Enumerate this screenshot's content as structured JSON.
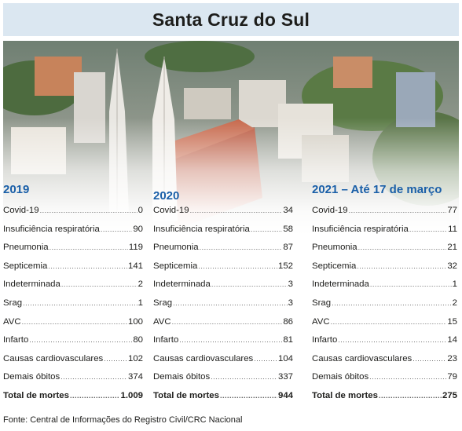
{
  "title": "Santa Cruz do Sul",
  "source": "Fonte: Central de Informações do Registro Civil/CRC Nacional",
  "columns": [
    {
      "heading": "2019",
      "rows": [
        {
          "label": "Covid-19",
          "value": "0"
        },
        {
          "label": "Insuficiência respiratória",
          "value": "90"
        },
        {
          "label": "Pneumonia",
          "value": "119"
        },
        {
          "label": "Septicemia",
          "value": "141"
        },
        {
          "label": "Indeterminada",
          "value": "2"
        },
        {
          "label": "Srag",
          "value": "1"
        },
        {
          "label": "AVC",
          "value": "100"
        },
        {
          "label": "Infarto",
          "value": "80"
        },
        {
          "label": "Causas cardiovasculares",
          "value": "102"
        },
        {
          "label": "Demais óbitos",
          "value": "374"
        }
      ],
      "total": {
        "label": "Total de mortes",
        "value": "1.009"
      }
    },
    {
      "heading": "2020",
      "rows": [
        {
          "label": "Covid-19",
          "value": "34"
        },
        {
          "label": "Insuficiência respiratória",
          "value": "58"
        },
        {
          "label": "Pneumonia",
          "value": "87"
        },
        {
          "label": "Septicemia",
          "value": "152"
        },
        {
          "label": "Indeterminada",
          "value": "3"
        },
        {
          "label": "Srag",
          "value": "3"
        },
        {
          "label": "AVC",
          "value": "86"
        },
        {
          "label": "Infarto",
          "value": "81"
        },
        {
          "label": "Causas cardiovasculares",
          "value": "104"
        },
        {
          "label": "Demais óbitos",
          "value": "337"
        }
      ],
      "total": {
        "label": "Total de mortes",
        "value": "944"
      }
    },
    {
      "heading": "2021 – Até 17 de março",
      "rows": [
        {
          "label": "Covid-19",
          "value": "77"
        },
        {
          "label": "Insuficiência respiratória",
          "value": "11"
        },
        {
          "label": "Pneumonia",
          "value": "21"
        },
        {
          "label": "Septicemia",
          "value": "32"
        },
        {
          "label": "Indeterminada",
          "value": "1"
        },
        {
          "label": "Srag",
          "value": "2"
        },
        {
          "label": "AVC",
          "value": "15"
        },
        {
          "label": "Infarto",
          "value": "14"
        },
        {
          "label": "Causas cardiovasculares",
          "value": "23"
        },
        {
          "label": "Demais óbitos",
          "value": "79"
        }
      ],
      "total": {
        "label": "Total de mortes",
        "value": "275"
      }
    }
  ],
  "colors": {
    "heading": "#1a5fa8",
    "title_bar": "#dbe7f1"
  }
}
